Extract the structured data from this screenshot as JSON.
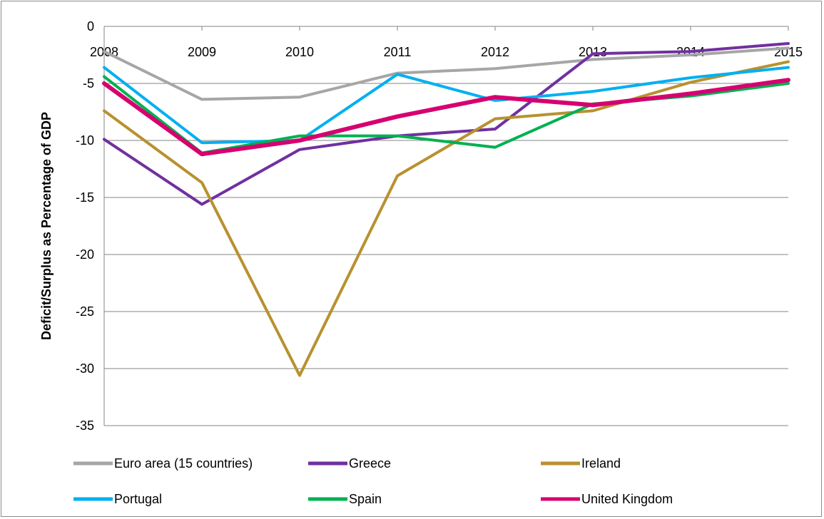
{
  "chart_data": {
    "type": "line",
    "title": "",
    "xlabel": "",
    "ylabel": "Deficit/Surplus as Percentage of GDP",
    "x": [
      "2008",
      "2009",
      "2010",
      "2011",
      "2012",
      "2013",
      "2014",
      "2015"
    ],
    "ylim": [
      -35,
      0
    ],
    "yticks": [
      0,
      -5,
      -10,
      -15,
      -20,
      -25,
      -30,
      -35
    ],
    "grid": "horizontal",
    "legend_position": "bottom",
    "series": [
      {
        "name": "Euro area (15 countries)",
        "color": "#a6a6a6",
        "values": [
          -2.2,
          -6.4,
          -6.2,
          -4.1,
          -3.7,
          -2.9,
          -2.5,
          -1.9
        ]
      },
      {
        "name": "Greece",
        "color": "#7030a0",
        "values": [
          -9.9,
          -15.6,
          -10.8,
          -9.6,
          -9.0,
          -2.4,
          -2.2,
          -1.5
        ]
      },
      {
        "name": "Ireland",
        "color": "#b8912f",
        "values": [
          -7.4,
          -13.7,
          -30.6,
          -13.1,
          -8.1,
          -7.4,
          -4.9,
          -3.1
        ]
      },
      {
        "name": "Portugal",
        "color": "#00b0f0",
        "values": [
          -3.6,
          -10.2,
          -10.0,
          -4.2,
          -6.5,
          -5.7,
          -4.5,
          -3.6
        ]
      },
      {
        "name": "Spain",
        "color": "#00b050",
        "values": [
          -4.4,
          -11.1,
          -9.6,
          -9.6,
          -10.6,
          -6.8,
          -6.1,
          -5.0
        ]
      },
      {
        "name": "United Kingdom",
        "color": "#d6006f",
        "values": [
          -5.0,
          -11.2,
          -10.0,
          -7.9,
          -6.2,
          -6.9,
          -5.9,
          -4.7
        ]
      }
    ]
  }
}
